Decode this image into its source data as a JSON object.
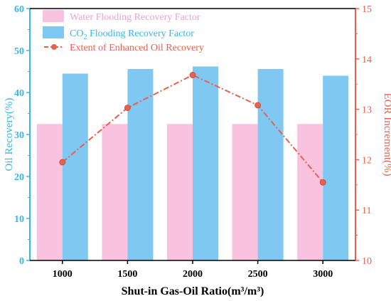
{
  "chart_data": {
    "type": "bar",
    "categories": [
      "1000",
      "1500",
      "2000",
      "2500",
      "3000"
    ],
    "series": [
      {
        "name": "Water Flooding Recovery Factor",
        "type": "bar",
        "axis": "left",
        "color": "#f9c3e0",
        "values": [
          32.5,
          32.5,
          32.5,
          32.5,
          32.5
        ]
      },
      {
        "name_parts": [
          "CO",
          "2",
          " Flooding Recovery Factor"
        ],
        "type": "bar",
        "axis": "left",
        "color": "#7ec8f2",
        "values": [
          44.5,
          45.6,
          46.2,
          45.6,
          44.0
        ]
      },
      {
        "name": "Extent of Enhanced Oil Recovery",
        "type": "line",
        "axis": "right",
        "color": "#e8604f",
        "values": [
          11.95,
          13.03,
          13.68,
          13.08,
          11.55
        ]
      }
    ],
    "xlabel": "Shut-in Gas-Oil Ratio(m³/m³)",
    "ylabel_left": "Oil Recovery(%)",
    "ylabel_right": "EOR Increment(%)",
    "ylim_left": [
      0,
      60
    ],
    "yticks_left": [
      "0",
      "10",
      "20",
      "30",
      "40",
      "50",
      "60"
    ],
    "ylim_right": [
      10,
      15
    ],
    "yticks_right": [
      "10",
      "11",
      "12",
      "13",
      "14",
      "15"
    ],
    "left_axis_color": "#3ab6e6",
    "right_axis_color": "#e8604f",
    "legend_position": "top-left",
    "grid": false
  }
}
